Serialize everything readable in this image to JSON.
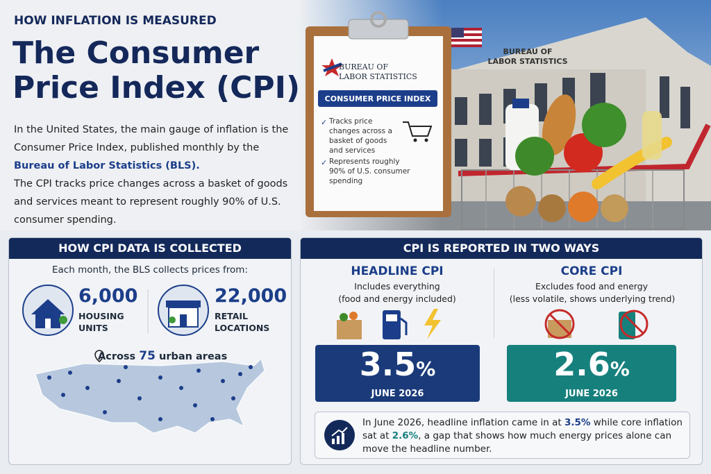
{
  "header": {
    "kicker": "HOW INFLATION IS MEASURED",
    "title_lines": [
      "The Consumer",
      "Price Index (CPI)"
    ],
    "intro": [
      "In the United States, the main gauge of inflation is the Consumer Price Index, published monthly by the",
      "Bureau of Labor Statistics (BLS)."
    ],
    "paragraph": "The CPI tracks price changes across a basket of goods and services meant to represent roughly 90% of U.S. consumer spending."
  },
  "clipboard": {
    "org_lines": [
      "BUREAU OF",
      "LABOR STATISTICS"
    ],
    "badge": "CONSUMER PRICE INDEX",
    "bullets": [
      "Tracks price changes across a basket of goods and services",
      "Represents roughly 90% of U.S. consumer spending"
    ]
  },
  "building_sign": [
    "BUREAU OF",
    "LABOR STATISTICS"
  ],
  "collected": {
    "title": "HOW CPI DATA IS COLLECTED",
    "subtitle": "Each month, the BLS collects prices from:",
    "stats": [
      {
        "value": "6,000",
        "label_lines": [
          "HOUSING",
          "UNITS"
        ]
      },
      {
        "value": "22,000",
        "label_lines": [
          "RETAIL",
          "LOCATIONS"
        ]
      }
    ],
    "areas": {
      "prefix": "Across",
      "number": "75",
      "suffix": "urban areas"
    }
  },
  "reported": {
    "title": "CPI IS REPORTED IN TWO WAYS",
    "measures": [
      {
        "name": "HEADLINE CPI",
        "desc": "Includes everything",
        "note": "(food and energy included)",
        "value": "3.5",
        "unit": "%",
        "date": "JUNE 2026"
      },
      {
        "name": "CORE CPI",
        "desc": "Excludes food and energy",
        "note": "(less volatile, shows underlying trend)",
        "value": "2.6",
        "unit": "%",
        "date": "JUNE 2026"
      }
    ],
    "summary": [
      "In June 2026, headline inflation came in at",
      "3.5%",
      "while core inflation sat at",
      "2.6%",
      ", a gap that shows how much energy prices alone can move the headline number."
    ]
  }
}
